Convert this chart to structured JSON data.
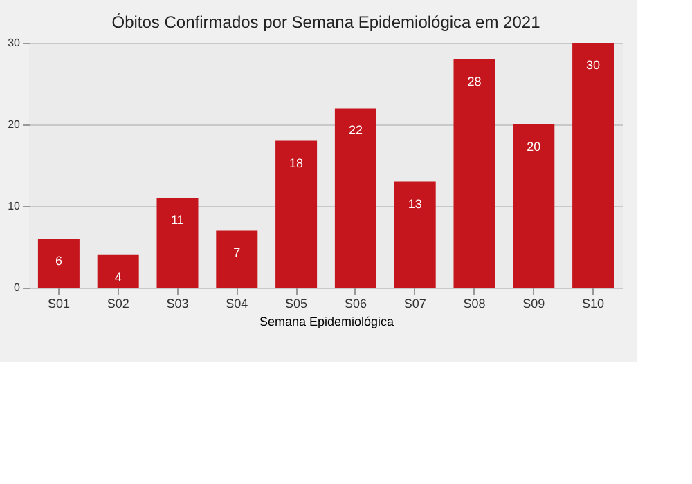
{
  "chart_data": {
    "type": "bar",
    "title": "Óbitos Confirmados por Semana Epidemiológica em 2021",
    "xlabel": "Semana Epidemiológica",
    "categories": [
      "S01",
      "S02",
      "S03",
      "S04",
      "S05",
      "S06",
      "S07",
      "S08",
      "S09",
      "S10"
    ],
    "values": [
      6,
      4,
      11,
      7,
      18,
      22,
      13,
      28,
      20,
      30
    ],
    "color": "#c4161c",
    "ylim": [
      0,
      30
    ],
    "yticks": [
      0,
      10,
      20,
      30
    ],
    "grid": "y",
    "data_labels": true
  }
}
